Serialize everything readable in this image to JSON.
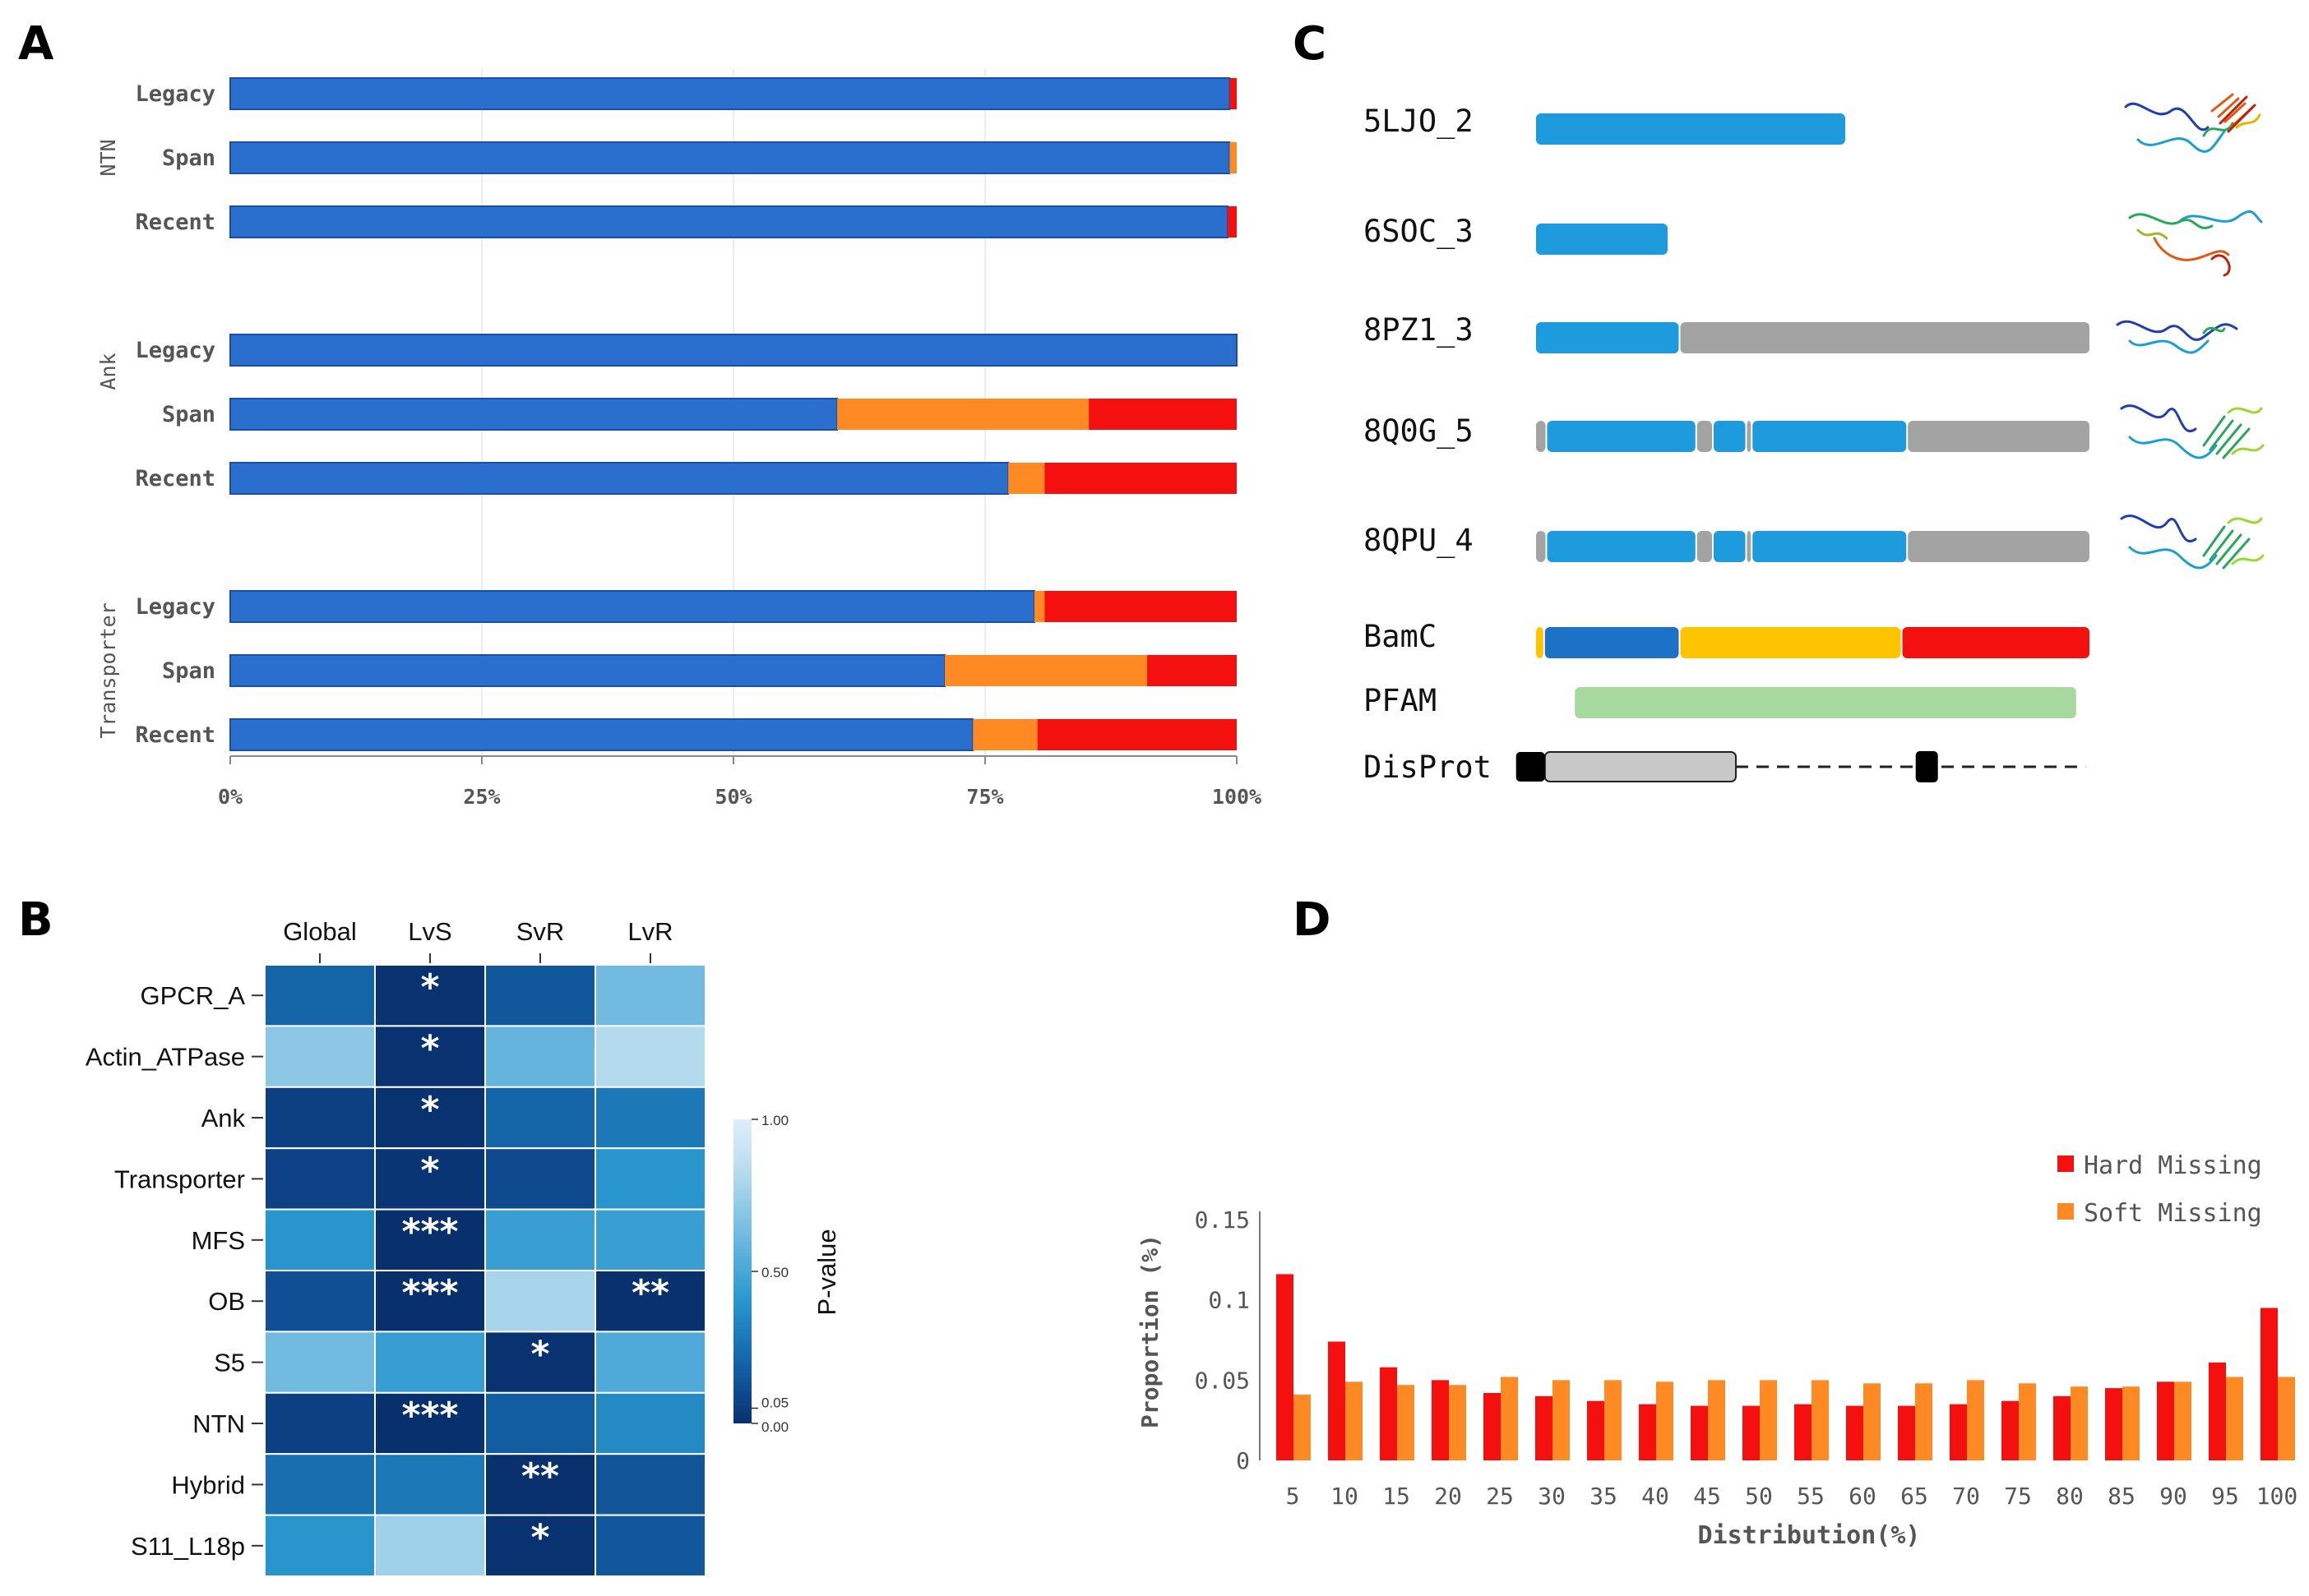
{
  "panel_labels": {
    "a": "A",
    "b": "B",
    "c": "C",
    "d": "D"
  },
  "colors": {
    "blue": "#2a6fce",
    "blue_edge": "#1a4fa8",
    "orange": "#ff8a24",
    "red": "#f51010",
    "seg_blue": "#1e9bdc",
    "seg_gray": "#a3a3a3",
    "dark_blue": "#1b72c6",
    "yellow": "#ffc400",
    "green": "#a6d99e",
    "disprot_gray": "#c8c8c8",
    "hard": "#f51010",
    "soft": "#ff8a24"
  },
  "chart_data": [
    {
      "id": "A",
      "type": "bar",
      "orientation": "horizontal-stacked",
      "groups": [
        {
          "name": "NTN",
          "rows": [
            {
              "label": "Legacy",
              "values": [
                99.3,
                0.0,
                0.7
              ]
            },
            {
              "label": "Span",
              "values": [
                99.3,
                0.7,
                0.0
              ]
            },
            {
              "label": "Recent",
              "values": [
                99.1,
                0.0,
                0.9
              ]
            }
          ]
        },
        {
          "name": "Ank",
          "rows": [
            {
              "label": "Legacy",
              "values": [
                100.0,
                0.0,
                0.0
              ]
            },
            {
              "label": "Span",
              "values": [
                60.3,
                25.0,
                14.7
              ]
            },
            {
              "label": "Recent",
              "values": [
                77.3,
                3.6,
                19.1
              ]
            }
          ]
        },
        {
          "name": "Transporter",
          "rows": [
            {
              "label": "Legacy",
              "values": [
                79.9,
                1.0,
                19.1
              ]
            },
            {
              "label": "Span",
              "values": [
                71.0,
                20.1,
                8.9
              ]
            },
            {
              "label": "Recent",
              "values": [
                73.8,
                6.4,
                19.8
              ]
            }
          ]
        }
      ],
      "xticks": [
        "0%",
        "25%",
        "50%",
        "75%",
        "100%"
      ],
      "xlim": [
        0,
        100
      ]
    },
    {
      "id": "B",
      "type": "heatmap",
      "columns": [
        "Global",
        "LvS",
        "SvR",
        "LvR"
      ],
      "rows": [
        "GPCR_A",
        "Actin_ATPase",
        "Ank",
        "Transporter",
        "MFS",
        "OB",
        "S5",
        "NTN",
        "Hybrid",
        "S11_L18p"
      ],
      "values": [
        [
          0.2,
          0.01,
          0.15,
          0.62
        ],
        [
          0.7,
          0.01,
          0.58,
          0.82
        ],
        [
          0.06,
          0.01,
          0.2,
          0.28
        ],
        [
          0.07,
          0.02,
          0.1,
          0.4
        ],
        [
          0.4,
          0.001,
          0.45,
          0.45
        ],
        [
          0.12,
          0.001,
          0.78,
          0.005
        ],
        [
          0.62,
          0.44,
          0.01,
          0.52
        ],
        [
          0.06,
          0.001,
          0.17,
          0.35
        ],
        [
          0.24,
          0.28,
          0.005,
          0.14
        ],
        [
          0.4,
          0.76,
          0.01,
          0.15
        ]
      ],
      "stars": [
        [
          "",
          "*",
          "",
          ""
        ],
        [
          "",
          "*",
          "",
          ""
        ],
        [
          "",
          "*",
          "",
          ""
        ],
        [
          "",
          "*",
          "",
          ""
        ],
        [
          "",
          "***",
          "",
          ""
        ],
        [
          "",
          "***",
          "",
          "**"
        ],
        [
          "",
          "",
          "*",
          ""
        ],
        [
          "",
          "***",
          "",
          ""
        ],
        [
          "",
          "",
          "**",
          ""
        ],
        [
          "",
          "",
          "*",
          ""
        ]
      ],
      "colorbar": {
        "label": "P-value",
        "ticks": [
          "1.00",
          "0.50",
          "0.05",
          "0.00"
        ],
        "tick_values": [
          1.0,
          0.5,
          0.05,
          0.0
        ]
      }
    },
    {
      "id": "C",
      "type": "table",
      "tracks": [
        {
          "label": "5LJO_2",
          "segments": [
            {
              "start": 0,
              "end": 28,
              "color": "seg_blue"
            }
          ]
        },
        {
          "label": "6SOC_3",
          "segments": [
            {
              "start": 0,
              "end": 12,
              "color": "seg_blue"
            }
          ]
        },
        {
          "label": "8PZ1_3",
          "segments": [
            {
              "start": 0,
              "end": 13,
              "color": "seg_blue"
            },
            {
              "start": 13,
              "end": 50,
              "color": "seg_gray"
            }
          ]
        },
        {
          "label": "8Q0G_5",
          "segments": [
            {
              "start": 0,
              "end": 1,
              "color": "seg_gray"
            },
            {
              "start": 1,
              "end": 14.5,
              "color": "seg_blue"
            },
            {
              "start": 14.5,
              "end": 16,
              "color": "seg_gray"
            },
            {
              "start": 16,
              "end": 19,
              "color": "seg_blue"
            },
            {
              "start": 19,
              "end": 19.5,
              "color": "seg_gray"
            },
            {
              "start": 19.5,
              "end": 33.5,
              "color": "seg_blue"
            },
            {
              "start": 33.5,
              "end": 50,
              "color": "seg_gray"
            }
          ]
        },
        {
          "label": "8QPU_4",
          "segments": [
            {
              "start": 0,
              "end": 1,
              "color": "seg_gray"
            },
            {
              "start": 1,
              "end": 14.5,
              "color": "seg_blue"
            },
            {
              "start": 14.5,
              "end": 16,
              "color": "seg_gray"
            },
            {
              "start": 16,
              "end": 19,
              "color": "seg_blue"
            },
            {
              "start": 19,
              "end": 19.5,
              "color": "seg_gray"
            },
            {
              "start": 19.5,
              "end": 33.5,
              "color": "seg_blue"
            },
            {
              "start": 33.5,
              "end": 50,
              "color": "seg_gray"
            }
          ]
        },
        {
          "label": "BamC",
          "segments": [
            {
              "start": 0,
              "end": 0.8,
              "color": "yellow"
            },
            {
              "start": 0.8,
              "end": 13,
              "color": "dark_blue"
            },
            {
              "start": 13,
              "end": 33,
              "color": "yellow"
            },
            {
              "start": 33,
              "end": 50,
              "color": "red"
            }
          ]
        },
        {
          "label": "PFAM",
          "segments": [
            {
              "start": 3.5,
              "end": 48.8,
              "color": "green"
            }
          ]
        }
      ],
      "disprot": {
        "label": "DisProt",
        "black1": [
          -1.8,
          0.8
        ],
        "gray": [
          0.8,
          18
        ],
        "black2": [
          34.2,
          36.2
        ],
        "dash_start": 18,
        "dash_end": 49.5
      }
    },
    {
      "id": "D",
      "type": "bar",
      "categories": [
        "5",
        "10",
        "15",
        "20",
        "25",
        "30",
        "35",
        "40",
        "45",
        "50",
        "55",
        "60",
        "65",
        "70",
        "75",
        "80",
        "85",
        "90",
        "95",
        "100"
      ],
      "series": [
        {
          "name": "Hard Missing",
          "values": [
            0.116,
            0.074,
            0.058,
            0.05,
            0.042,
            0.04,
            0.037,
            0.035,
            0.034,
            0.034,
            0.035,
            0.034,
            0.034,
            0.035,
            0.037,
            0.04,
            0.045,
            0.049,
            0.061,
            0.095
          ]
        },
        {
          "name": "Soft Missing",
          "values": [
            0.041,
            0.049,
            0.047,
            0.047,
            0.052,
            0.05,
            0.05,
            0.049,
            0.05,
            0.05,
            0.05,
            0.048,
            0.048,
            0.05,
            0.048,
            0.046,
            0.046,
            0.049,
            0.052,
            0.052
          ]
        }
      ],
      "yticks": [
        "0",
        "0.05",
        "0.1",
        "0.15"
      ],
      "ytick_values": [
        0,
        0.05,
        0.1,
        0.15
      ],
      "ylim": [
        0,
        0.15
      ],
      "xlabel": "Distribution(%)",
      "ylabel": "Proportion (%)"
    }
  ]
}
